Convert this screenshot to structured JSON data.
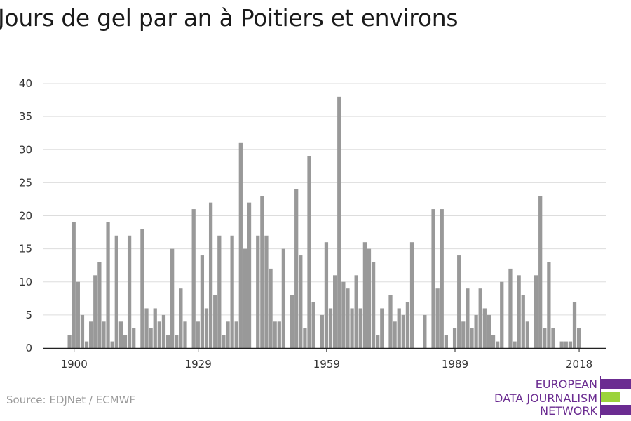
{
  "title": "Jours de gel par an à Poitiers et environs",
  "source": "Source: EDJNet / ECMWF",
  "logo": {
    "lines": [
      "EUROPEAN",
      "DATA JOURNALISM",
      "NETWORK"
    ],
    "colors": {
      "purple": "#6b2c91",
      "green": "#9bd33b"
    }
  },
  "colors": {
    "bar": "#999999",
    "grid": "#dddddd",
    "axis": "#222222"
  },
  "chart_data": {
    "type": "bar",
    "title": "Jours de gel par an à Poitiers et environs",
    "xlabel": "",
    "ylabel": "",
    "ylim": [
      0,
      40
    ],
    "yticks": [
      0,
      5,
      10,
      15,
      20,
      25,
      30,
      35,
      40
    ],
    "xtick_labels": [
      "1900",
      "1929",
      "1959",
      "1989",
      "2018"
    ],
    "grid": true,
    "x": [
      1899,
      1900,
      1901,
      1902,
      1903,
      1904,
      1905,
      1906,
      1907,
      1908,
      1909,
      1910,
      1911,
      1912,
      1913,
      1914,
      1915,
      1916,
      1917,
      1918,
      1919,
      1920,
      1921,
      1922,
      1923,
      1924,
      1925,
      1926,
      1927,
      1928,
      1929,
      1930,
      1931,
      1932,
      1933,
      1934,
      1935,
      1936,
      1937,
      1938,
      1939,
      1940,
      1941,
      1942,
      1943,
      1944,
      1945,
      1946,
      1947,
      1948,
      1949,
      1950,
      1951,
      1952,
      1953,
      1954,
      1955,
      1956,
      1957,
      1958,
      1959,
      1960,
      1961,
      1962,
      1963,
      1964,
      1965,
      1966,
      1967,
      1968,
      1969,
      1970,
      1971,
      1972,
      1973,
      1974,
      1975,
      1976,
      1977,
      1978,
      1979,
      1980,
      1981,
      1982,
      1983,
      1984,
      1985,
      1986,
      1987,
      1988,
      1989,
      1990,
      1991,
      1992,
      1993,
      1994,
      1995,
      1996,
      1997,
      1998,
      1999,
      2000,
      2001,
      2002,
      2003,
      2004,
      2005,
      2006,
      2007,
      2008,
      2009,
      2010,
      2011,
      2012,
      2013,
      2014,
      2015,
      2016,
      2017,
      2018,
      2019,
      2020
    ],
    "values": [
      2,
      19,
      10,
      5,
      1,
      4,
      11,
      13,
      4,
      19,
      1,
      17,
      4,
      2,
      17,
      3,
      0,
      18,
      6,
      3,
      6,
      4,
      5,
      2,
      15,
      2,
      9,
      4,
      0,
      21,
      4,
      14,
      6,
      22,
      8,
      17,
      2,
      4,
      17,
      4,
      31,
      15,
      22,
      0,
      17,
      23,
      17,
      12,
      4,
      4,
      15,
      0,
      8,
      24,
      14,
      3,
      29,
      7,
      0,
      5,
      16,
      6,
      11,
      38,
      10,
      9,
      6,
      11,
      6,
      16,
      15,
      13,
      2,
      6,
      0,
      8,
      4,
      6,
      5,
      7,
      16,
      0,
      0,
      5,
      0,
      21,
      9,
      21,
      2,
      0,
      3,
      14,
      4,
      9,
      3,
      5,
      9,
      6,
      5,
      2,
      1,
      10,
      0,
      12,
      1,
      11,
      8,
      4,
      0,
      11,
      23,
      3,
      13,
      3,
      0,
      1,
      1,
      1,
      7,
      3,
      0,
      0
    ]
  }
}
